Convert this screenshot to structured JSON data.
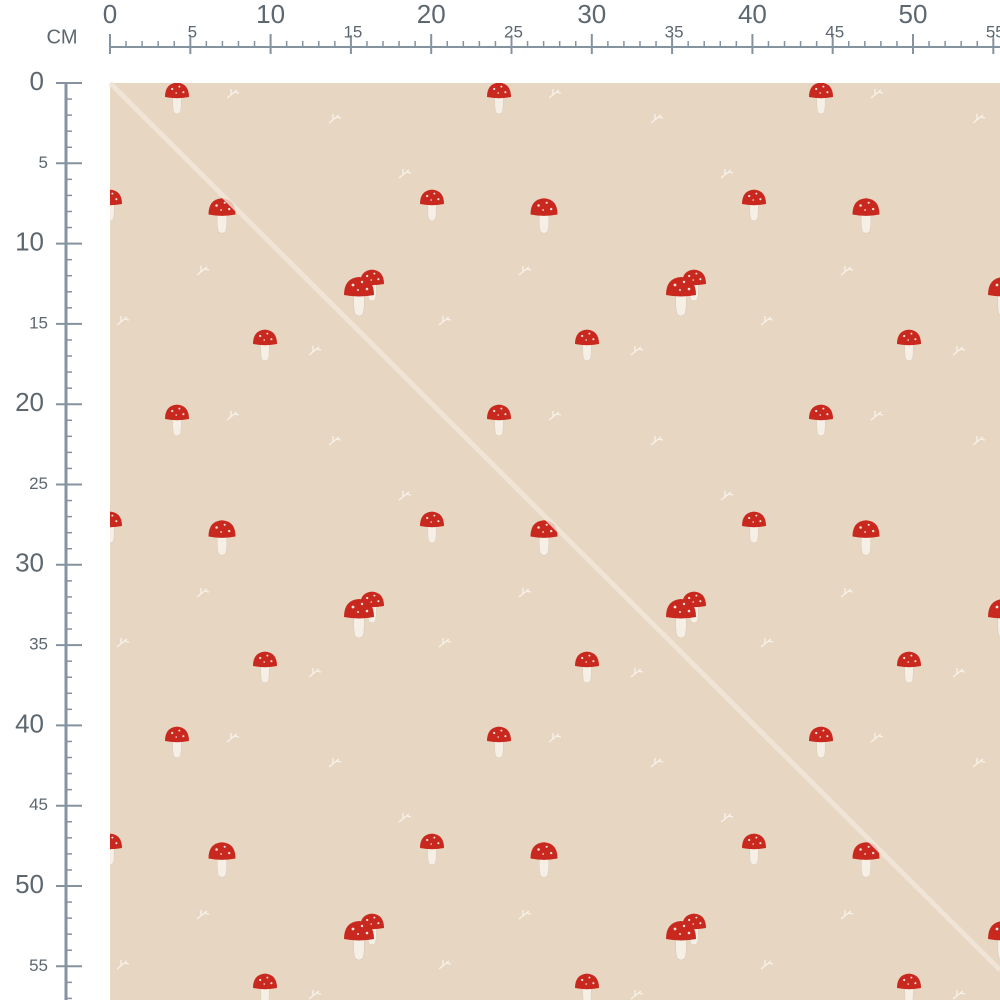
{
  "ruler": {
    "unit": "CM",
    "x_ticks": [
      0,
      5,
      10,
      15,
      20,
      25,
      30,
      35,
      40,
      45,
      50,
      55
    ],
    "y_ticks": [
      0,
      5,
      10,
      15,
      20,
      25,
      30,
      35,
      40,
      45,
      50,
      55
    ]
  }
}
